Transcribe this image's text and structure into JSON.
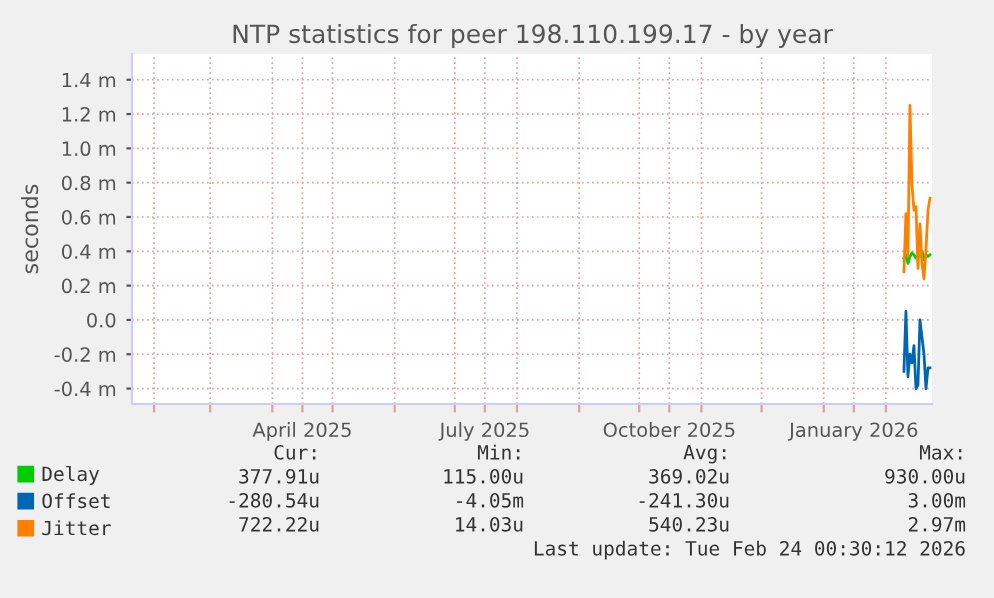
{
  "chart_data": {
    "type": "line",
    "title": "NTP statistics for peer 198.110.199.17 - by year",
    "ylabel": "seconds",
    "x": [
      "2026-02-10",
      "2026-02-11",
      "2026-02-12",
      "2026-02-13",
      "2026-02-14",
      "2026-02-15",
      "2026-02-16",
      "2026-02-17",
      "2026-02-18",
      "2026-02-19",
      "2026-02-20",
      "2026-02-21",
      "2026-02-22",
      "2026-02-23"
    ],
    "series": [
      {
        "name": "Delay",
        "color": "#00cc00",
        "values": [
          0.36,
          0.38,
          0.33,
          0.37,
          0.39,
          0.38,
          0.36,
          0.38,
          0.37,
          0.4,
          0.35,
          0.38,
          0.37,
          0.38
        ]
      },
      {
        "name": "Offset",
        "color": "#0066b3",
        "values": [
          -0.3,
          0.05,
          -0.33,
          -0.2,
          -0.25,
          -0.15,
          -0.4,
          -0.38,
          0.0,
          -0.1,
          -0.2,
          -0.4,
          -0.28,
          -0.28
        ]
      },
      {
        "name": "Jitter",
        "color": "#ff8000",
        "values": [
          0.28,
          0.62,
          0.37,
          1.25,
          0.79,
          0.64,
          0.66,
          0.3,
          0.56,
          0.33,
          0.24,
          0.41,
          0.64,
          0.71
        ]
      }
    ],
    "xlim": [
      "2025-01-21",
      "2026-02-24"
    ],
    "xticks": [
      {
        "value": "2025-02-01",
        "label": null
      },
      {
        "value": "2025-03-01",
        "label": null
      },
      {
        "value": "2025-04-01",
        "label": null
      },
      {
        "value": "2025-04-16",
        "label": "April 2025"
      },
      {
        "value": "2025-05-01",
        "label": null
      },
      {
        "value": "2025-06-01",
        "label": null
      },
      {
        "value": "2025-07-01",
        "label": null
      },
      {
        "value": "2025-07-16",
        "label": "July 2025"
      },
      {
        "value": "2025-08-01",
        "label": null
      },
      {
        "value": "2025-09-01",
        "label": null
      },
      {
        "value": "2025-10-01",
        "label": null
      },
      {
        "value": "2025-10-16",
        "label": "October 2025"
      },
      {
        "value": "2025-11-01",
        "label": null
      },
      {
        "value": "2025-12-01",
        "label": null
      },
      {
        "value": "2026-01-01",
        "label": null
      },
      {
        "value": "2026-01-16",
        "label": "January 2026"
      },
      {
        "value": "2026-02-01",
        "label": null
      }
    ],
    "ylim": [
      -0.49,
      1.55
    ],
    "yticks": [
      {
        "value": -0.4,
        "label": "-0.4 m"
      },
      {
        "value": -0.2,
        "label": "-0.2 m"
      },
      {
        "value": 0.0,
        "label": "0.0"
      },
      {
        "value": 0.2,
        "label": "0.2 m"
      },
      {
        "value": 0.4,
        "label": "0.4 m"
      },
      {
        "value": 0.6,
        "label": "0.6 m"
      },
      {
        "value": 0.8,
        "label": "0.8 m"
      },
      {
        "value": 1.0,
        "label": "1.0 m"
      },
      {
        "value": 1.2,
        "label": "1.2 m"
      },
      {
        "value": 1.4,
        "label": "1.4 m"
      }
    ],
    "grid": true,
    "legend": "bottom left",
    "marker": "none",
    "line_style": "solid",
    "annotations": [
      "Cur:",
      "Min:",
      "Avg:",
      "Max:",
      "377.91u",
      "115.00u",
      "369.02u",
      "930.00u",
      "-280.54u",
      "-4.05m",
      "-241.30u",
      "3.00m",
      "722.22u",
      "14.03u",
      "540.23u",
      "2.97m",
      "Last update: Tue Feb 24 00:30:12 2026"
    ]
  }
}
